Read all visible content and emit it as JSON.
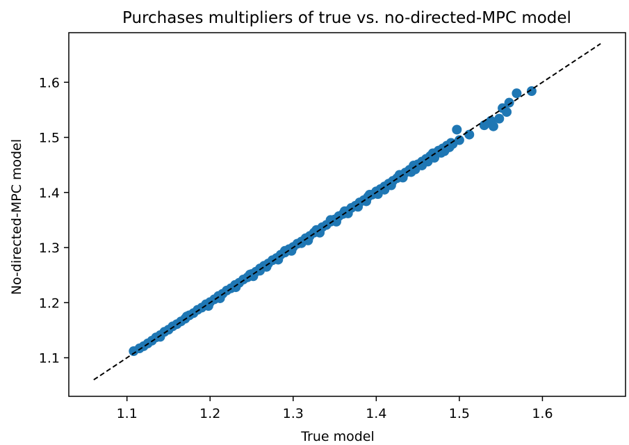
{
  "chart_data": {
    "type": "scatter",
    "title": "Purchases multipliers of true vs. no-directed-MPC model",
    "xlabel": "True model",
    "ylabel": "No-directed-MPC model",
    "xlim": [
      1.03,
      1.7
    ],
    "ylim": [
      1.03,
      1.69
    ],
    "xticks": [
      "1.1",
      "1.2",
      "1.3",
      "1.4",
      "1.5",
      "1.6"
    ],
    "yticks": [
      "1.1",
      "1.2",
      "1.3",
      "1.4",
      "1.5",
      "1.6"
    ],
    "grid": false,
    "legend": "none",
    "point_color": "#1f77b4",
    "reference_line": {
      "style": "dashed",
      "color": "#000000",
      "x": [
        1.06,
        1.67
      ],
      "y": [
        1.06,
        1.67
      ]
    },
    "series": [
      {
        "points": [
          [
            1.115,
            1.117
          ],
          [
            1.12,
            1.121
          ],
          [
            1.125,
            1.126
          ],
          [
            1.13,
            1.131
          ],
          [
            1.135,
            1.137
          ],
          [
            1.14,
            1.141
          ],
          [
            1.145,
            1.147
          ],
          [
            1.15,
            1.151
          ],
          [
            1.155,
            1.157
          ],
          [
            1.16,
            1.161
          ],
          [
            1.165,
            1.166
          ],
          [
            1.17,
            1.171
          ],
          [
            1.175,
            1.177
          ],
          [
            1.18,
            1.181
          ],
          [
            1.185,
            1.187
          ],
          [
            1.19,
            1.191
          ],
          [
            1.195,
            1.197
          ],
          [
            1.2,
            1.201
          ],
          [
            1.205,
            1.206
          ],
          [
            1.21,
            1.212
          ],
          [
            1.215,
            1.216
          ],
          [
            1.22,
            1.222
          ],
          [
            1.225,
            1.226
          ],
          [
            1.23,
            1.232
          ],
          [
            1.235,
            1.236
          ],
          [
            1.24,
            1.242
          ],
          [
            1.245,
            1.246
          ],
          [
            1.25,
            1.252
          ],
          [
            1.255,
            1.256
          ],
          [
            1.26,
            1.262
          ],
          [
            1.265,
            1.267
          ],
          [
            1.27,
            1.271
          ],
          [
            1.275,
            1.277
          ],
          [
            1.28,
            1.281
          ],
          [
            1.285,
            1.287
          ],
          [
            1.29,
            1.291
          ],
          [
            1.295,
            1.297
          ],
          [
            1.3,
            1.301
          ],
          [
            1.305,
            1.307
          ],
          [
            1.31,
            1.311
          ],
          [
            1.315,
            1.317
          ],
          [
            1.32,
            1.321
          ],
          [
            1.325,
            1.327
          ],
          [
            1.33,
            1.331
          ],
          [
            1.335,
            1.337
          ],
          [
            1.34,
            1.341
          ],
          [
            1.345,
            1.347
          ],
          [
            1.35,
            1.351
          ],
          [
            1.355,
            1.357
          ],
          [
            1.36,
            1.361
          ],
          [
            1.365,
            1.366
          ],
          [
            1.37,
            1.372
          ],
          [
            1.375,
            1.376
          ],
          [
            1.38,
            1.382
          ],
          [
            1.385,
            1.386
          ],
          [
            1.39,
            1.392
          ],
          [
            1.395,
            1.396
          ],
          [
            1.4,
            1.402
          ],
          [
            1.405,
            1.406
          ],
          [
            1.41,
            1.411
          ],
          [
            1.415,
            1.416
          ],
          [
            1.42,
            1.421
          ],
          [
            1.425,
            1.426
          ],
          [
            1.43,
            1.431
          ],
          [
            1.435,
            1.436
          ],
          [
            1.44,
            1.441
          ],
          [
            1.445,
            1.446
          ],
          [
            1.45,
            1.451
          ],
          [
            1.455,
            1.456
          ],
          [
            1.46,
            1.461
          ],
          [
            1.465,
            1.466
          ],
          [
            1.47,
            1.471
          ],
          [
            1.475,
            1.476
          ],
          [
            1.48,
            1.48
          ],
          [
            1.485,
            1.485
          ],
          [
            1.49,
            1.49
          ],
          [
            1.198,
            1.194
          ],
          [
            1.212,
            1.208
          ],
          [
            1.231,
            1.228
          ],
          [
            1.252,
            1.248
          ],
          [
            1.268,
            1.265
          ],
          [
            1.282,
            1.278
          ],
          [
            1.298,
            1.294
          ],
          [
            1.318,
            1.313
          ],
          [
            1.332,
            1.327
          ],
          [
            1.352,
            1.347
          ],
          [
            1.366,
            1.362
          ],
          [
            1.388,
            1.384
          ],
          [
            1.402,
            1.397
          ],
          [
            1.418,
            1.413
          ],
          [
            1.432,
            1.427
          ],
          [
            1.447,
            1.442
          ],
          [
            1.462,
            1.456
          ],
          [
            1.478,
            1.472
          ],
          [
            1.172,
            1.175
          ],
          [
            1.248,
            1.251
          ],
          [
            1.29,
            1.294
          ],
          [
            1.328,
            1.332
          ],
          [
            1.345,
            1.35
          ],
          [
            1.362,
            1.366
          ],
          [
            1.392,
            1.396
          ],
          [
            1.428,
            1.432
          ],
          [
            1.445,
            1.449
          ],
          [
            1.468,
            1.471
          ],
          [
            1.108,
            1.112
          ],
          [
            1.14,
            1.138
          ],
          [
            1.26,
            1.258
          ],
          [
            1.31,
            1.308
          ],
          [
            1.378,
            1.374
          ],
          [
            1.41,
            1.405
          ],
          [
            1.442,
            1.437
          ],
          [
            1.455,
            1.449
          ],
          [
            1.47,
            1.463
          ],
          [
            1.482,
            1.475
          ],
          [
            1.488,
            1.482
          ],
          [
            1.492,
            1.488
          ],
          [
            1.497,
            1.514
          ],
          [
            1.5,
            1.495
          ],
          [
            1.512,
            1.505
          ],
          [
            1.53,
            1.522
          ],
          [
            1.538,
            1.53
          ],
          [
            1.541,
            1.52
          ],
          [
            1.548,
            1.534
          ],
          [
            1.552,
            1.553
          ],
          [
            1.557,
            1.546
          ],
          [
            1.56,
            1.563
          ],
          [
            1.569,
            1.58
          ],
          [
            1.587,
            1.584
          ]
        ]
      }
    ]
  }
}
